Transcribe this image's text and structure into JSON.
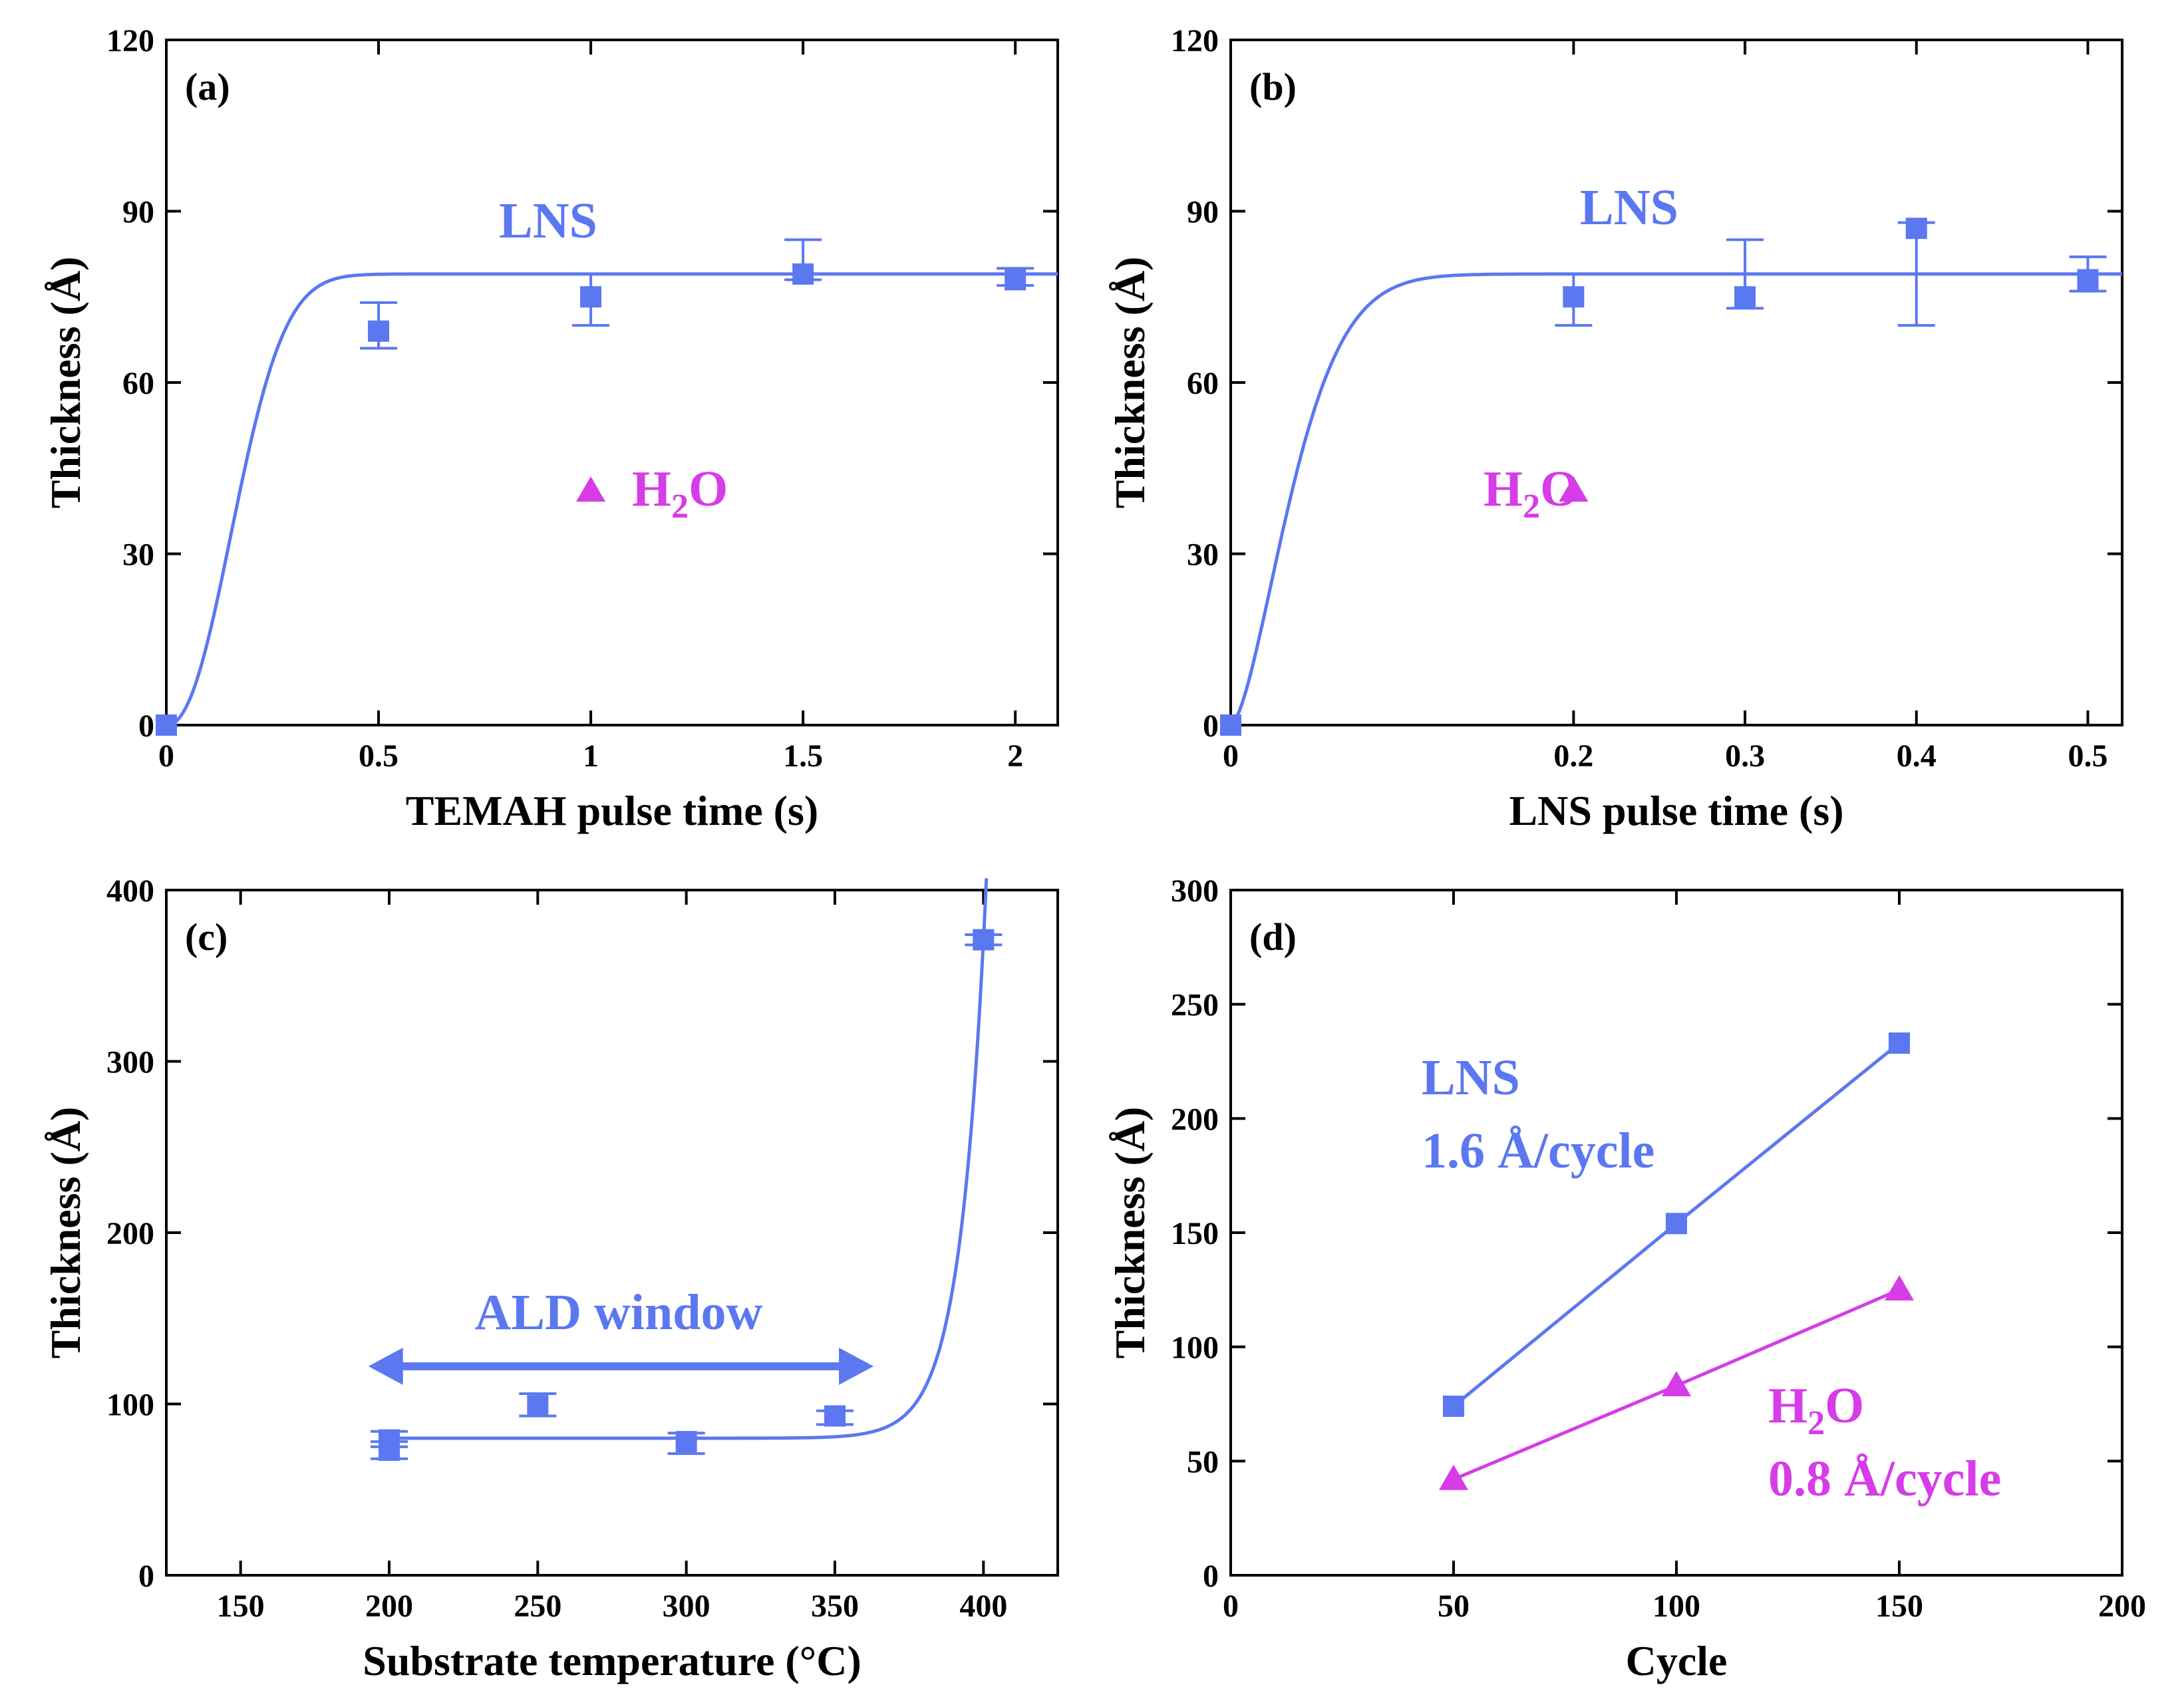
{
  "colors": {
    "lns": "#5b78f0",
    "h2o": "#d63ce8",
    "axis": "#000000",
    "background": "#ffffff"
  },
  "chart_data": [
    {
      "id": "a",
      "type": "scatter",
      "panel_label": "(a)",
      "xlabel": "TEMAH pulse time (s)",
      "ylabel": "Thickness (Å)",
      "xlim": [
        0,
        2.1
      ],
      "ylim": [
        0,
        120
      ],
      "xticks": [
        0,
        0.5,
        1,
        1.5,
        2
      ],
      "xtick_labels": [
        "0",
        "0.5",
        "1",
        "1.5",
        "2"
      ],
      "yticks": [
        0,
        30,
        60,
        90,
        120
      ],
      "ytick_labels": [
        "0",
        "30",
        "60",
        "90",
        "120"
      ],
      "series": [
        {
          "name": "LNS",
          "marker": "square",
          "color": "#5b78f0",
          "x": [
            0,
            0.5,
            1,
            1.5,
            2
          ],
          "y": [
            0,
            69,
            75,
            79,
            78
          ],
          "err_low": [
            0,
            66,
            70,
            78,
            77
          ],
          "err_high": [
            0,
            74,
            79,
            85,
            80
          ]
        },
        {
          "name": "H2O",
          "marker": "triangle",
          "color": "#d63ce8",
          "x": [
            1
          ],
          "y": [
            41
          ]
        }
      ],
      "fit": {
        "series": "LNS",
        "type": "sigmoid",
        "color": "#5b78f0",
        "params": {
          "plateau": 79,
          "k": 5.0,
          "n": 2.2
        }
      },
      "annotations": [
        {
          "text": "LNS",
          "color": "#5b78f0"
        },
        {
          "text": "H",
          "sub": "2",
          "text_after": "O",
          "color": "#d63ce8"
        }
      ]
    },
    {
      "id": "b",
      "type": "scatter",
      "panel_label": "(b)",
      "xlabel": "LNS pulse time (s)",
      "ylabel": "Thickness (Å)",
      "xlim": [
        0,
        0.52
      ],
      "ylim": [
        0,
        120
      ],
      "xticks": [
        0,
        0.2,
        0.3,
        0.4,
        0.5
      ],
      "xtick_labels": [
        "0",
        "0.2",
        "0.3",
        "0.4",
        "0.5"
      ],
      "yticks": [
        0,
        30,
        60,
        90,
        120
      ],
      "ytick_labels": [
        "0",
        "30",
        "60",
        "90",
        "120"
      ],
      "series": [
        {
          "name": "LNS",
          "marker": "square",
          "color": "#5b78f0",
          "x": [
            0,
            0.2,
            0.3,
            0.4,
            0.5
          ],
          "y": [
            0,
            75,
            75,
            87,
            78
          ],
          "err_low": [
            0,
            70,
            73,
            70,
            76
          ],
          "err_high": [
            0,
            79,
            85,
            88,
            82
          ]
        },
        {
          "name": "H2O",
          "marker": "triangle",
          "color": "#d63ce8",
          "x": [
            0.2
          ],
          "y": [
            41
          ]
        }
      ],
      "fit": {
        "series": "LNS",
        "type": "sigmoid",
        "color": "#5b78f0",
        "params": {
          "plateau": 79,
          "k": 23.0,
          "n": 1.6
        }
      },
      "annotations": [
        {
          "text": "LNS",
          "color": "#5b78f0"
        },
        {
          "text": "H",
          "sub": "2",
          "text_after": "O",
          "color": "#d63ce8"
        }
      ]
    },
    {
      "id": "c",
      "type": "scatter",
      "panel_label": "(c)",
      "xlabel": "Substrate temperature (°C)",
      "ylabel": "Thickness (Å)",
      "xlim": [
        125,
        425
      ],
      "ylim": [
        0,
        400
      ],
      "xticks": [
        150,
        200,
        250,
        300,
        350,
        400
      ],
      "xtick_labels": [
        "150",
        "200",
        "250",
        "300",
        "350",
        "400"
      ],
      "yticks": [
        0,
        100,
        200,
        300,
        400
      ],
      "ytick_labels": [
        "0",
        "100",
        "200",
        "300",
        "400"
      ],
      "series": [
        {
          "name": "LNS",
          "marker": "square",
          "color": "#5b78f0",
          "x": [
            200,
            200,
            250,
            300,
            350,
            400
          ],
          "y": [
            73,
            79,
            99,
            78,
            93,
            371
          ],
          "err_low": [
            68,
            75,
            93,
            71,
            88,
            368
          ],
          "err_high": [
            78,
            84,
            106,
            83,
            96,
            374
          ]
        }
      ],
      "fit": {
        "series": "LNS",
        "type": "baseline-exponential",
        "color": "#5b78f0",
        "params": {
          "baseline": 80,
          "x0": 400,
          "y_at_x0": 371,
          "tau": 8.6
        }
      },
      "arrow": {
        "x_from": 193,
        "x_to": 363,
        "y": 122,
        "color": "#5b78f0"
      },
      "annotations": [
        {
          "text": "ALD window",
          "color": "#5b78f0"
        }
      ]
    },
    {
      "id": "d",
      "type": "line",
      "panel_label": "(d)",
      "xlabel": "Cycle",
      "ylabel": "Thickness (Å)",
      "xlim": [
        0,
        200
      ],
      "ylim": [
        0,
        300
      ],
      "xticks": [
        0,
        50,
        100,
        150,
        200
      ],
      "xtick_labels": [
        "0",
        "50",
        "100",
        "150",
        "200"
      ],
      "yticks": [
        0,
        50,
        100,
        150,
        200,
        250,
        300
      ],
      "ytick_labels": [
        "0",
        "50",
        "100",
        "150",
        "200",
        "250",
        "300"
      ],
      "series": [
        {
          "name": "LNS",
          "marker": "square",
          "color": "#5b78f0",
          "x": [
            50,
            100,
            150
          ],
          "y": [
            74,
            154,
            233
          ]
        },
        {
          "name": "H2O",
          "marker": "triangle",
          "color": "#d63ce8",
          "x": [
            50,
            100,
            150
          ],
          "y": [
            42,
            83,
            125
          ]
        }
      ],
      "annotations": [
        {
          "text": "LNS",
          "color": "#5b78f0"
        },
        {
          "text": "1.6 Å/cycle",
          "color": "#5b78f0"
        },
        {
          "text": "H",
          "sub": "2",
          "text_after": "O",
          "color": "#d63ce8"
        },
        {
          "text": "0.8 Å/cycle",
          "color": "#d63ce8"
        }
      ]
    }
  ]
}
